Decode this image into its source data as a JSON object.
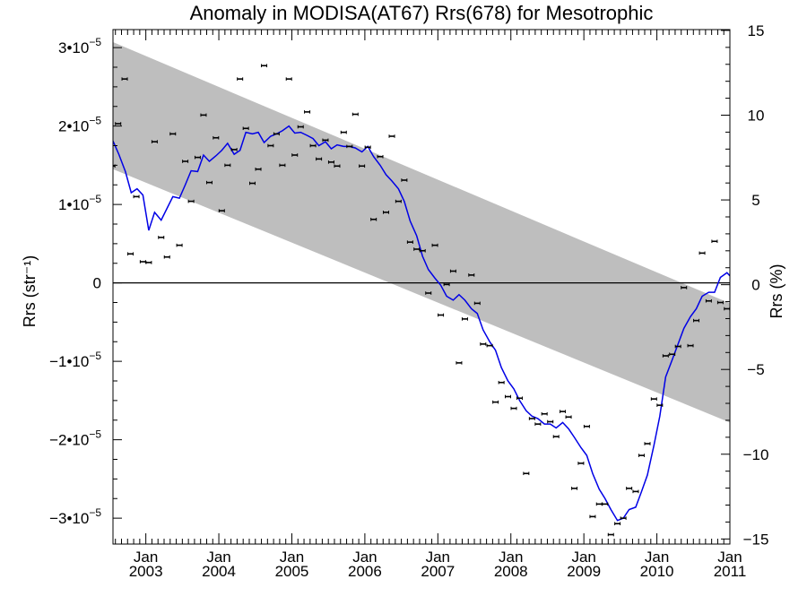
{
  "chart_data": {
    "type": "scatter",
    "title": "Anomaly in MODISA(AT67) Rrs(678) for Mesotrophic",
    "ylabel": "Rrs (str⁻¹)",
    "y2label": "Rrs (%)",
    "xlim": [
      2002.55,
      2011.0
    ],
    "ylim": [
      -3.33e-05,
      3.23e-05
    ],
    "y2lim": [
      -15.3,
      15.05
    ],
    "y_ticks": [
      {
        "v": 3e-05,
        "m": "3•10",
        "e": "−5"
      },
      {
        "v": 2e-05,
        "m": "2•10",
        "e": "−5"
      },
      {
        "v": 1e-05,
        "m": "1•10",
        "e": "−5"
      },
      {
        "v": 0,
        "m": "0",
        "e": ""
      },
      {
        "v": -1e-05,
        "m": "−1•10",
        "e": "−5"
      },
      {
        "v": -2e-05,
        "m": "−2•10",
        "e": "−5"
      },
      {
        "v": -3e-05,
        "m": "−3•10",
        "e": "−5"
      }
    ],
    "y2_ticks": [
      "15",
      "10",
      "5",
      "0",
      "−5",
      "−10",
      "−15"
    ],
    "y2_tick_values": [
      15,
      10,
      5,
      0,
      -5,
      -10,
      -15
    ],
    "x_ticks": [
      {
        "v": 2003.0,
        "month": "Jan",
        "year": "2003"
      },
      {
        "v": 2004.0,
        "month": "Jan",
        "year": "2004"
      },
      {
        "v": 2005.0,
        "month": "Jan",
        "year": "2005"
      },
      {
        "v": 2006.0,
        "month": "Jan",
        "year": "2006"
      },
      {
        "v": 2007.0,
        "month": "Jan",
        "year": "2007"
      },
      {
        "v": 2008.0,
        "month": "Jan",
        "year": "2008"
      },
      {
        "v": 2009.0,
        "month": "Jan",
        "year": "2009"
      },
      {
        "v": 2010.0,
        "month": "Jan",
        "year": "2010"
      },
      {
        "v": 2011.0,
        "month": "Jan",
        "year": "2011"
      }
    ],
    "band": {
      "x": [
        2002.55,
        2011.0
      ],
      "upper": [
        3.07e-05,
        -2.6e-06
      ],
      "lower": [
        1.45e-05,
        -1.78e-05
      ],
      "color": "#bebebe"
    },
    "points": {
      "x": [
        2002.54,
        2002.62,
        2002.71,
        2002.79,
        2002.87,
        2002.96,
        2003.04,
        2003.12,
        2003.21,
        2003.29,
        2003.37,
        2003.46,
        2003.54,
        2003.62,
        2003.71,
        2003.79,
        2003.87,
        2003.96,
        2004.04,
        2004.12,
        2004.21,
        2004.29,
        2004.37,
        2004.46,
        2004.54,
        2004.62,
        2004.71,
        2004.79,
        2004.87,
        2004.96,
        2005.04,
        2005.12,
        2005.21,
        2005.29,
        2005.37,
        2005.46,
        2005.54,
        2005.62,
        2005.71,
        2005.79,
        2005.87,
        2005.96,
        2006.04,
        2006.12,
        2006.21,
        2006.29,
        2006.37,
        2006.46,
        2006.54,
        2006.62,
        2006.71,
        2006.79,
        2006.87,
        2006.96,
        2007.04,
        2007.12,
        2007.21,
        2007.29,
        2007.37,
        2007.46,
        2007.54,
        2007.62,
        2007.71,
        2007.79,
        2007.87,
        2007.96,
        2008.04,
        2008.12,
        2008.21,
        2008.29,
        2008.37,
        2008.46,
        2008.54,
        2008.62,
        2008.71,
        2008.79,
        2008.87,
        2008.96,
        2009.04,
        2009.12,
        2009.21,
        2009.29,
        2009.37,
        2009.46,
        2009.54,
        2009.62,
        2009.71,
        2009.79,
        2009.87,
        2009.96,
        2010.04,
        2010.12,
        2010.21,
        2010.29,
        2010.37,
        2010.46,
        2010.54,
        2010.62,
        2010.71,
        2010.79,
        2010.87,
        2010.96,
        2011.04
      ],
      "y": [
        1.49e-05,
        2.03e-05,
        2.6e-05,
        3.7e-06,
        1.1e-05,
        2.7e-06,
        2.6e-06,
        1.8e-05,
        5.8e-06,
        3.3e-06,
        1.9e-05,
        4.8e-06,
        1.55e-05,
        1.04e-05,
        1.6e-05,
        2.14e-05,
        1.28e-05,
        1.85e-05,
        9.2e-06,
        1.5e-05,
        1.7e-05,
        2.6e-05,
        1.97e-05,
        1.27e-05,
        1.45e-05,
        2.77e-05,
        1.75e-05,
        1.9e-05,
        1.5e-05,
        2.6e-05,
        1.63e-05,
        1.99e-05,
        2.18e-05,
        1.75e-05,
        1.58e-05,
        1.82e-05,
        1.54e-05,
        1.49e-05,
        1.92e-05,
        1.74e-05,
        2.15e-05,
        1.49e-05,
        1.73e-05,
        8.1e-06,
        1.61e-05,
        9e-06,
        1.87e-05,
        1.04e-05,
        1.31e-05,
        5.2e-06,
        4.3e-06,
        4.1e-06,
        -1.3e-06,
        4.8e-06,
        -4.1e-06,
        -2e-07,
        1.5e-06,
        -1.02e-05,
        -4.6e-06,
        1e-06,
        -2.6e-06,
        -7.8e-06,
        -8e-06,
        -1.52e-05,
        -1.27e-05,
        -1.45e-05,
        -1.6e-05,
        -1.47e-05,
        -2.43e-05,
        -1.73e-05,
        -1.8e-05,
        -1.67e-05,
        -1.77e-05,
        -1.96e-05,
        -1.64e-05,
        -1.71e-05,
        -2.62e-05,
        -2.3e-05,
        -1.83e-05,
        -2.98e-05,
        -2.82e-05,
        -2.82e-05,
        -3.21e-05,
        -3.07e-05,
        -3e-05,
        -2.62e-05,
        -2.66e-05,
        -2.2e-05,
        -2.05e-05,
        -1.48e-05,
        -1.56e-05,
        -9.3e-06,
        -9.1e-06,
        -8.1e-06,
        -6e-07,
        -8e-06,
        -4.8e-06,
        3.8e-06,
        -2.3e-06,
        5.3e-06,
        -2.5e-06,
        -3.3e-06,
        6e-06
      ]
    },
    "running_mean": {
      "x": [
        2002.55,
        2002.63,
        2002.72,
        2002.8,
        2002.88,
        2002.96,
        2003.04,
        2003.12,
        2003.21,
        2003.29,
        2003.37,
        2003.46,
        2003.54,
        2003.62,
        2003.71,
        2003.79,
        2003.87,
        2003.96,
        2004.04,
        2004.12,
        2004.21,
        2004.29,
        2004.37,
        2004.46,
        2004.54,
        2004.62,
        2004.71,
        2004.79,
        2004.87,
        2004.96,
        2005.04,
        2005.12,
        2005.21,
        2005.29,
        2005.37,
        2005.46,
        2005.54,
        2005.62,
        2005.71,
        2005.79,
        2005.87,
        2005.96,
        2006.04,
        2006.12,
        2006.21,
        2006.29,
        2006.37,
        2006.46,
        2006.54,
        2006.62,
        2006.71,
        2006.79,
        2006.87,
        2006.96,
        2007.04,
        2007.12,
        2007.21,
        2007.29,
        2007.37,
        2007.46,
        2007.54,
        2007.62,
        2007.71,
        2007.79,
        2007.87,
        2007.96,
        2008.04,
        2008.12,
        2008.21,
        2008.29,
        2008.37,
        2008.46,
        2008.54,
        2008.62,
        2008.71,
        2008.79,
        2008.87,
        2008.96,
        2009.04,
        2009.12,
        2009.21,
        2009.29,
        2009.37,
        2009.46,
        2009.54,
        2009.62,
        2009.71,
        2009.79,
        2009.87,
        2009.96,
        2010.04,
        2010.12,
        2010.21,
        2010.29,
        2010.37,
        2010.46,
        2010.54,
        2010.62,
        2010.71,
        2010.79,
        2010.87,
        2010.96,
        2011.0
      ],
      "y": [
        1.81e-05,
        1.64e-05,
        1.42e-05,
        1.15e-05,
        1.2e-05,
        1.12e-05,
        6.7e-06,
        9e-06,
        8e-06,
        9.5e-06,
        1.1e-05,
        1.08e-05,
        1.25e-05,
        1.43e-05,
        1.42e-05,
        1.63e-05,
        1.55e-05,
        1.62e-05,
        1.69e-05,
        1.78e-05,
        1.64e-05,
        1.69e-05,
        1.92e-05,
        1.9e-05,
        1.92e-05,
        1.79e-05,
        1.87e-05,
        1.9e-05,
        1.94e-05,
        2e-05,
        1.91e-05,
        1.92e-05,
        1.88e-05,
        1.84e-05,
        1.75e-05,
        1.8e-05,
        1.71e-05,
        1.76e-05,
        1.74e-05,
        1.74e-05,
        1.72e-05,
        1.67e-05,
        1.74e-05,
        1.61e-05,
        1.5e-05,
        1.38e-05,
        1.3e-05,
        1.2e-05,
        1.04e-05,
        7.9e-06,
        6e-06,
        3.4e-06,
        1.7e-06,
        6e-07,
        -3e-07,
        -1.7e-06,
        -2.2e-06,
        -1.5e-06,
        -2.2e-06,
        -3.3e-06,
        -3.9e-06,
        -6e-06,
        -7.5e-06,
        -8.6e-06,
        -1.08e-05,
        -1.25e-05,
        -1.35e-05,
        -1.5e-05,
        -1.63e-05,
        -1.7e-05,
        -1.73e-05,
        -1.8e-05,
        -1.8e-05,
        -1.85e-05,
        -1.78e-05,
        -1.86e-05,
        -1.97e-05,
        -2.1e-05,
        -2.2e-05,
        -2.43e-05,
        -2.63e-05,
        -2.75e-05,
        -2.89e-05,
        -3.03e-05,
        -3e-05,
        -2.89e-05,
        -2.86e-05,
        -2.66e-05,
        -2.45e-05,
        -2.07e-05,
        -1.7e-05,
        -1.2e-05,
        -9.8e-06,
        -7.8e-06,
        -5.8e-06,
        -4.3e-06,
        -3.3e-06,
        -1.7e-06,
        -1.2e-06,
        -1.2e-06,
        7e-07,
        1.3e-06,
        9e-07
      ],
      "color": "#0000e6"
    },
    "grid": false,
    "legend": "none"
  }
}
